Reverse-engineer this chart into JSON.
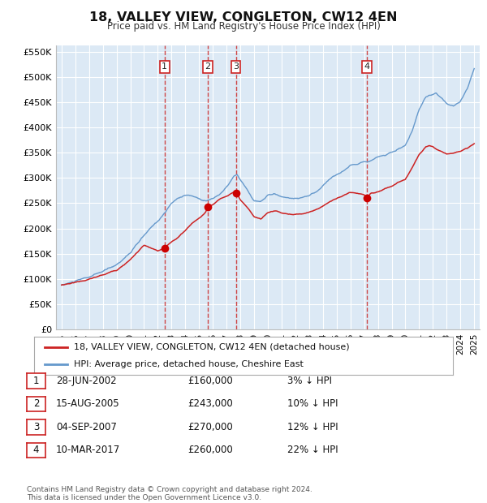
{
  "title": "18, VALLEY VIEW, CONGLETON, CW12 4EN",
  "subtitle": "Price paid vs. HM Land Registry's House Price Index (HPI)",
  "background_color": "#ffffff",
  "plot_bg_color": "#dce9f5",
  "grid_color": "#ffffff",
  "xlim": [
    1994.6,
    2025.4
  ],
  "ylim": [
    0,
    562500
  ],
  "yticks": [
    0,
    50000,
    100000,
    150000,
    200000,
    250000,
    300000,
    350000,
    400000,
    450000,
    500000,
    550000
  ],
  "ytick_labels": [
    "£0",
    "£50K",
    "£100K",
    "£150K",
    "£200K",
    "£250K",
    "£300K",
    "£350K",
    "£400K",
    "£450K",
    "£500K",
    "£550K"
  ],
  "xtick_years": [
    1995,
    1996,
    1997,
    1998,
    1999,
    2000,
    2001,
    2002,
    2003,
    2004,
    2005,
    2006,
    2007,
    2008,
    2009,
    2010,
    2011,
    2012,
    2013,
    2014,
    2015,
    2016,
    2017,
    2018,
    2019,
    2020,
    2021,
    2022,
    2023,
    2024,
    2025
  ],
  "hpi_color": "#6699cc",
  "sale_color": "#cc2222",
  "marker_color": "#cc0000",
  "dashed_color": "#cc3333",
  "sales": [
    {
      "num": 1,
      "date_x": 2002.49,
      "price": 160000,
      "label": "28-JUN-2002",
      "amount": "£160,000",
      "pct": "3% ↓ HPI"
    },
    {
      "num": 2,
      "date_x": 2005.62,
      "price": 243000,
      "label": "15-AUG-2005",
      "amount": "£243,000",
      "pct": "10% ↓ HPI"
    },
    {
      "num": 3,
      "date_x": 2007.67,
      "price": 270000,
      "label": "04-SEP-2007",
      "amount": "£270,000",
      "pct": "12% ↓ HPI"
    },
    {
      "num": 4,
      "date_x": 2017.19,
      "price": 260000,
      "label": "10-MAR-2017",
      "amount": "£260,000",
      "pct": "22% ↓ HPI"
    }
  ],
  "legend_line1": "18, VALLEY VIEW, CONGLETON, CW12 4EN (detached house)",
  "legend_line2": "HPI: Average price, detached house, Cheshire East",
  "footer": "Contains HM Land Registry data © Crown copyright and database right 2024.\nThis data is licensed under the Open Government Licence v3.0."
}
